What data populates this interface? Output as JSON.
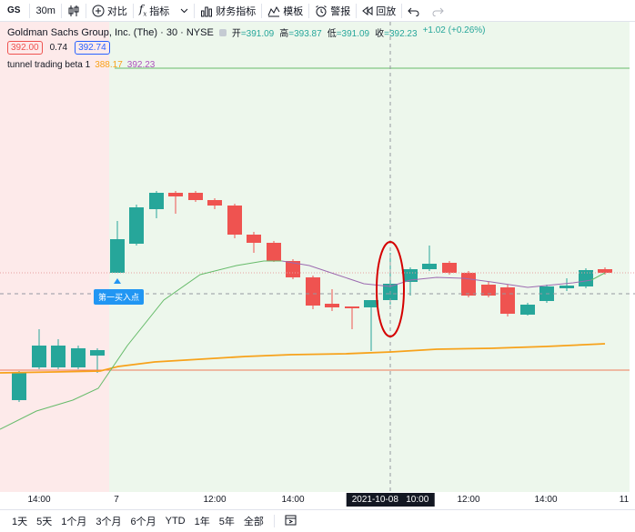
{
  "toolbar": {
    "symbol": "GS",
    "interval": "30m",
    "compare_label": "对比",
    "indicators_label": "指标",
    "financials_label": "财务指标",
    "templates_label": "模板",
    "alert_label": "警报",
    "replay_label": "回放"
  },
  "legend": {
    "title": "Goldman Sachs Group, Inc. (The) · 30 · NYSE",
    "open_label": "开",
    "open": "=391.09",
    "high_label": "高",
    "high": "=393.87",
    "low_label": "低",
    "low": "=391.09",
    "close_label": "收",
    "close": "=392.23",
    "change": "+1.02 (+0.26%)",
    "bid": "392.00",
    "spread": "0.74",
    "ask": "392.74",
    "indicator_name": "tunnel trading beta 1",
    "indicator_v1": "388.17",
    "indicator_v2": "392.23"
  },
  "annotation": {
    "buy_point": "第一买入点"
  },
  "time_axis": {
    "labels": [
      "14:00",
      "7",
      "12:00",
      "14:00",
      "12:00",
      "14:00",
      "11"
    ],
    "crosshair_date": "2021-10-08",
    "crosshair_time": "10:00"
  },
  "bottom": {
    "ranges": [
      "1天",
      "5天",
      "1个月",
      "3个月",
      "6个月",
      "YTD",
      "1年",
      "5年",
      "全部"
    ]
  },
  "colors": {
    "up": "#26a69a",
    "down": "#ef5350",
    "bg_left": "#fdeaea",
    "bg_right": "#eaf6ea",
    "orange": "#f7a21b",
    "green_line": "#66bb6a",
    "purple": "#9c6ab0"
  }
}
